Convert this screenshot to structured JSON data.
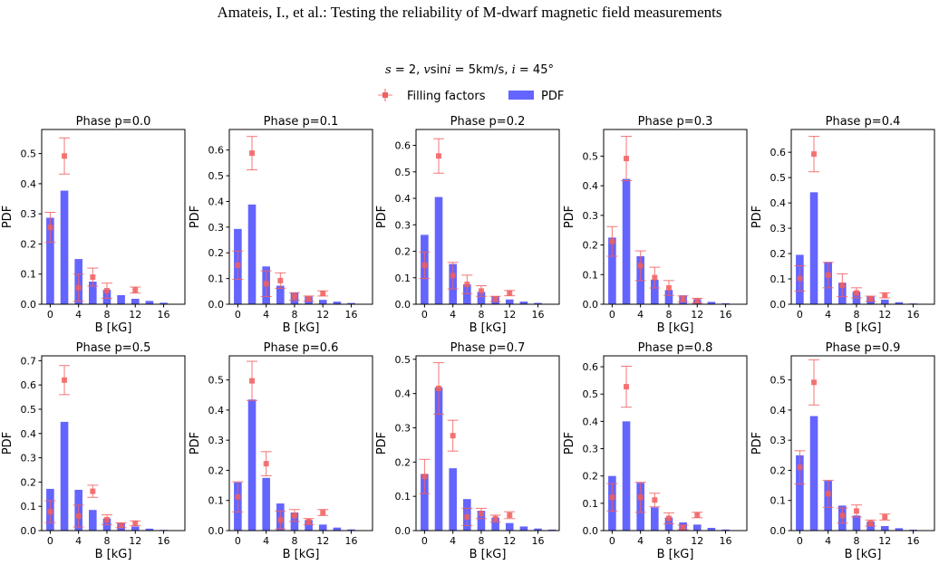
{
  "header": {
    "running_title": "Amateis, I., et al.: Testing the reliability of M-dwarf magnetic field measurements"
  },
  "figure": {
    "suptitle_plain_prefix": "s = 2, ",
    "suptitle_parts": [
      {
        "t": "s",
        "i": true
      },
      {
        "t": " = 2, ",
        "i": false
      },
      {
        "t": "v",
        "i": true
      },
      {
        "t": "sin",
        "i": false
      },
      {
        "t": "i",
        "i": true
      },
      {
        "t": " = 5km/s, ",
        "i": false
      },
      {
        "t": "i",
        "i": true
      },
      {
        "t": " = 45°",
        "i": false
      }
    ],
    "legend": {
      "filling_label": "Filling factors",
      "pdf_label": "PDF",
      "placement": "top-center"
    },
    "colors": {
      "pdf": "#6464ff",
      "filling": "#f25f5f"
    }
  },
  "chart_data": [
    {
      "type": "bar",
      "title": "Phase p=0.0",
      "xlabel": "B [kG]",
      "ylabel": "PDF",
      "ylim": [
        0,
        0.58
      ],
      "yticks": [
        0,
        0.1,
        0.2,
        0.3,
        0.4,
        0.5
      ],
      "xticks": [
        0,
        4,
        8,
        12,
        16
      ],
      "pdf": {
        "x": [
          0,
          2,
          4,
          6,
          8,
          10,
          12,
          14,
          16
        ],
        "values": [
          0.287,
          0.377,
          0.15,
          0.075,
          0.048,
          0.03,
          0.018,
          0.011,
          0.005
        ]
      },
      "filling_factors": {
        "x": [
          0,
          2,
          4,
          6,
          8,
          12
        ],
        "values": [
          0.255,
          0.492,
          0.055,
          0.09,
          0.045,
          0.047
        ],
        "err": [
          0.05,
          0.06,
          0.045,
          0.03,
          0.025,
          0.01
        ]
      }
    },
    {
      "type": "bar",
      "title": "Phase p=0.1",
      "xlabel": "B [kG]",
      "ylabel": "PDF",
      "ylim": [
        0,
        0.68
      ],
      "yticks": [
        0,
        0.1,
        0.2,
        0.3,
        0.4,
        0.5,
        0.6
      ],
      "xticks": [
        0,
        4,
        8,
        12,
        16
      ],
      "pdf": {
        "x": [
          0,
          2,
          4,
          6,
          8,
          10,
          12,
          14,
          16
        ],
        "values": [
          0.293,
          0.388,
          0.147,
          0.072,
          0.045,
          0.03,
          0.017,
          0.01,
          0.005
        ]
      },
      "filling_factors": {
        "x": [
          0,
          2,
          4,
          6,
          8,
          10,
          12
        ],
        "values": [
          0.152,
          0.588,
          0.08,
          0.092,
          0.03,
          0.022,
          0.042
        ],
        "err": [
          0.055,
          0.065,
          0.05,
          0.03,
          0.015,
          0.01,
          0.01
        ]
      }
    },
    {
      "type": "bar",
      "title": "Phase p=0.2",
      "xlabel": "B [kG]",
      "ylabel": "PDF",
      "ylim": [
        0,
        0.66
      ],
      "yticks": [
        0,
        0.1,
        0.2,
        0.3,
        0.4,
        0.5,
        0.6
      ],
      "xticks": [
        0,
        4,
        8,
        12,
        16
      ],
      "pdf": {
        "x": [
          0,
          2,
          4,
          6,
          8,
          10,
          12,
          14,
          16
        ],
        "values": [
          0.262,
          0.405,
          0.152,
          0.075,
          0.047,
          0.03,
          0.018,
          0.01,
          0.005
        ]
      },
      "filling_factors": {
        "x": [
          0,
          2,
          4,
          6,
          8,
          10,
          12
        ],
        "values": [
          0.147,
          0.56,
          0.108,
          0.075,
          0.05,
          0.02,
          0.042
        ],
        "err": [
          0.05,
          0.065,
          0.05,
          0.035,
          0.02,
          0.01,
          0.01
        ]
      }
    },
    {
      "type": "bar",
      "title": "Phase p=0.3",
      "xlabel": "B [kG]",
      "ylabel": "PDF",
      "ylim": [
        0,
        0.59
      ],
      "yticks": [
        0,
        0.1,
        0.2,
        0.3,
        0.4,
        0.5
      ],
      "xticks": [
        0,
        4,
        8,
        12,
        16
      ],
      "pdf": {
        "x": [
          0,
          2,
          4,
          6,
          8,
          10,
          12,
          14,
          16
        ],
        "values": [
          0.225,
          0.423,
          0.162,
          0.083,
          0.048,
          0.03,
          0.017,
          0.008,
          0.003
        ]
      },
      "filling_factors": {
        "x": [
          0,
          2,
          4,
          6,
          8,
          10,
          12
        ],
        "values": [
          0.212,
          0.492,
          0.13,
          0.09,
          0.055,
          0.018,
          0.012
        ],
        "err": [
          0.05,
          0.075,
          0.05,
          0.035,
          0.025,
          0.01,
          0.008
        ]
      }
    },
    {
      "type": "bar",
      "title": "Phase p=0.4",
      "xlabel": "B [kG]",
      "ylabel": "PDF",
      "ylim": [
        0,
        0.69
      ],
      "yticks": [
        0,
        0.1,
        0.2,
        0.3,
        0.4,
        0.5,
        0.6
      ],
      "xticks": [
        0,
        4,
        8,
        12,
        16
      ],
      "pdf": {
        "x": [
          0,
          2,
          4,
          6,
          8,
          10,
          12,
          14,
          16
        ],
        "values": [
          0.195,
          0.442,
          0.167,
          0.085,
          0.05,
          0.03,
          0.018,
          0.008,
          0.003
        ]
      },
      "filling_factors": {
        "x": [
          0,
          2,
          4,
          6,
          8,
          10,
          12
        ],
        "values": [
          0.102,
          0.593,
          0.115,
          0.075,
          0.045,
          0.022,
          0.035
        ],
        "err": [
          0.05,
          0.07,
          0.05,
          0.045,
          0.02,
          0.01,
          0.01
        ]
      }
    },
    {
      "type": "bar",
      "title": "Phase p=0.5",
      "xlabel": "B [kG]",
      "ylabel": "PDF",
      "ylim": [
        0,
        0.72
      ],
      "yticks": [
        0,
        0.1,
        0.2,
        0.3,
        0.4,
        0.5,
        0.6,
        0.7
      ],
      "xticks": [
        0,
        4,
        8,
        12,
        16
      ],
      "pdf": {
        "x": [
          0,
          2,
          4,
          6,
          8,
          10,
          12,
          14,
          16
        ],
        "values": [
          0.172,
          0.448,
          0.168,
          0.085,
          0.05,
          0.03,
          0.017,
          0.008,
          0.003
        ]
      },
      "filling_factors": {
        "x": [
          0,
          2,
          4,
          6,
          8,
          10,
          12
        ],
        "values": [
          0.078,
          0.62,
          0.06,
          0.162,
          0.045,
          0.022,
          0.03
        ],
        "err": [
          0.045,
          0.06,
          0.045,
          0.025,
          0.02,
          0.01,
          0.01
        ]
      }
    },
    {
      "type": "bar",
      "title": "Phase p=0.6",
      "xlabel": "B [kG]",
      "ylabel": "PDF",
      "ylim": [
        0,
        0.58
      ],
      "yticks": [
        0,
        0.1,
        0.2,
        0.3,
        0.4,
        0.5
      ],
      "xticks": [
        0,
        4,
        8,
        12,
        16
      ],
      "pdf": {
        "x": [
          0,
          2,
          4,
          6,
          8,
          10,
          12,
          14,
          16
        ],
        "values": [
          0.16,
          0.435,
          0.175,
          0.09,
          0.06,
          0.035,
          0.02,
          0.01,
          0.004
        ]
      },
      "filling_factors": {
        "x": [
          0,
          2,
          4,
          6,
          8,
          10,
          12
        ],
        "values": [
          0.112,
          0.497,
          0.222,
          0.035,
          0.05,
          0.03,
          0.06
        ],
        "err": [
          0.05,
          0.065,
          0.04,
          0.03,
          0.02,
          0.01,
          0.01
        ]
      }
    },
    {
      "type": "bar",
      "title": "Phase p=0.7",
      "xlabel": "B [kG]",
      "ylabel": "PDF",
      "ylim": [
        0,
        0.51
      ],
      "yticks": [
        0,
        0.1,
        0.2,
        0.3,
        0.4,
        0.5
      ],
      "xticks": [
        0,
        4,
        8,
        12,
        16
      ],
      "pdf": {
        "x": [
          0,
          2,
          4,
          6,
          8,
          10,
          12,
          14,
          16,
          18
        ],
        "values": [
          0.165,
          0.418,
          0.182,
          0.092,
          0.058,
          0.038,
          0.022,
          0.012,
          0.006,
          0.003
        ]
      },
      "filling_factors": {
        "x": [
          0,
          2,
          4,
          6,
          8,
          10,
          12
        ],
        "values": [
          0.158,
          0.415,
          0.277,
          0.04,
          0.05,
          0.035,
          0.045
        ],
        "err": [
          0.05,
          0.075,
          0.045,
          0.025,
          0.015,
          0.01,
          0.01
        ]
      }
    },
    {
      "type": "bar",
      "title": "Phase p=0.8",
      "xlabel": "B [kG]",
      "ylabel": "PDF",
      "ylim": [
        0,
        0.64
      ],
      "yticks": [
        0,
        0.1,
        0.2,
        0.3,
        0.4,
        0.5,
        0.6
      ],
      "xticks": [
        0,
        4,
        8,
        12,
        16
      ],
      "pdf": {
        "x": [
          0,
          2,
          4,
          6,
          8,
          10,
          12,
          14,
          16
        ],
        "values": [
          0.2,
          0.4,
          0.175,
          0.085,
          0.048,
          0.03,
          0.022,
          0.01,
          0.004
        ]
      },
      "filling_factors": {
        "x": [
          0,
          2,
          4,
          6,
          8,
          10,
          12
        ],
        "values": [
          0.122,
          0.527,
          0.122,
          0.112,
          0.045,
          0.012,
          0.057
        ],
        "err": [
          0.05,
          0.075,
          0.055,
          0.025,
          0.02,
          0.008,
          0.01
        ]
      }
    },
    {
      "type": "bar",
      "title": "Phase p=0.9",
      "xlabel": "B [kG]",
      "ylabel": "PDF",
      "ylim": [
        0,
        0.58
      ],
      "yticks": [
        0,
        0.1,
        0.2,
        0.3,
        0.4,
        0.5
      ],
      "xticks": [
        0,
        4,
        8,
        12,
        16
      ],
      "pdf": {
        "x": [
          0,
          2,
          4,
          6,
          8,
          10,
          12,
          14,
          16
        ],
        "values": [
          0.25,
          0.38,
          0.165,
          0.083,
          0.05,
          0.03,
          0.015,
          0.008,
          0.003
        ]
      },
      "filling_factors": {
        "x": [
          0,
          2,
          4,
          6,
          8,
          10,
          12
        ],
        "values": [
          0.21,
          0.492,
          0.122,
          0.05,
          0.065,
          0.025,
          0.045
        ],
        "err": [
          0.055,
          0.075,
          0.045,
          0.025,
          0.02,
          0.01,
          0.01
        ]
      }
    }
  ]
}
